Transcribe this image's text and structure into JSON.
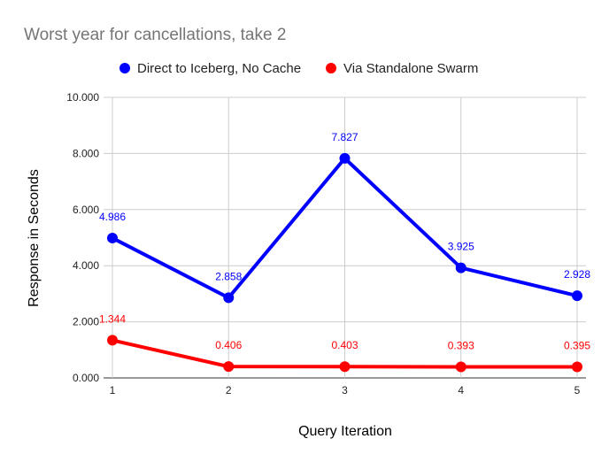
{
  "chart_data": {
    "type": "line",
    "title": "Worst year for cancellations, take 2",
    "xlabel": "Query Iteration",
    "ylabel": "Response in Seconds",
    "x": [
      1,
      2,
      3,
      4,
      5
    ],
    "x_tick_labels": [
      "1",
      "2",
      "3",
      "4",
      "5"
    ],
    "ylim": [
      0,
      10
    ],
    "y_ticks": [
      0,
      2,
      4,
      6,
      8,
      10
    ],
    "y_tick_labels": [
      "0.000",
      "2.000",
      "4.000",
      "6.000",
      "8.000",
      "10.000"
    ],
    "grid": true,
    "legend_position": "top",
    "series": [
      {
        "name": "Direct to Iceberg, No Cache",
        "color": "#0000ff",
        "values": [
          4.986,
          2.858,
          7.827,
          3.925,
          2.928
        ],
        "labels": [
          "4.986",
          "2.858",
          "7.827",
          "3.925",
          "2.928"
        ]
      },
      {
        "name": "Via Standalone Swarm",
        "color": "#ff0000",
        "values": [
          1.344,
          0.406,
          0.403,
          0.393,
          0.395
        ],
        "labels": [
          "1.344",
          "0.406",
          "0.403",
          "0.393",
          "0.395"
        ]
      }
    ]
  }
}
